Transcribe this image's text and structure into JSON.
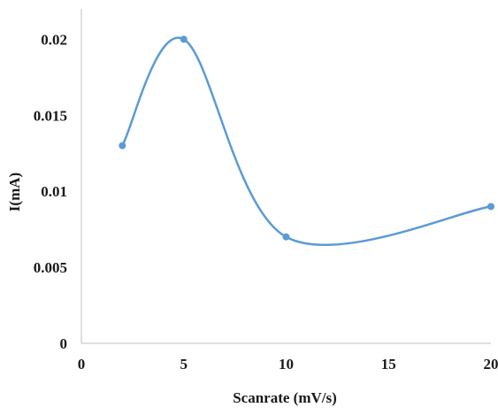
{
  "chart_data": {
    "type": "line",
    "smoothed": true,
    "xlabel": "Scanrate (mV/s)",
    "ylabel": "I(mA)",
    "xlim": [
      0,
      20
    ],
    "ylim": [
      0,
      0.022
    ],
    "x_ticks": [
      0,
      5,
      10,
      15,
      20
    ],
    "x_tick_labels": [
      "0",
      "5",
      "10",
      "15",
      "20"
    ],
    "y_ticks": [
      0,
      0.005,
      0.01,
      0.015,
      0.02
    ],
    "y_tick_labels": [
      "0",
      "0.005",
      "0.01",
      "0.015",
      "0.02"
    ],
    "grid": false,
    "series": [
      {
        "color": "#5b9bd5",
        "points": [
          {
            "x": 2,
            "y": 0.013
          },
          {
            "x": 5,
            "y": 0.02
          },
          {
            "x": 10,
            "y": 0.007
          },
          {
            "x": 20,
            "y": 0.009
          }
        ]
      }
    ]
  }
}
